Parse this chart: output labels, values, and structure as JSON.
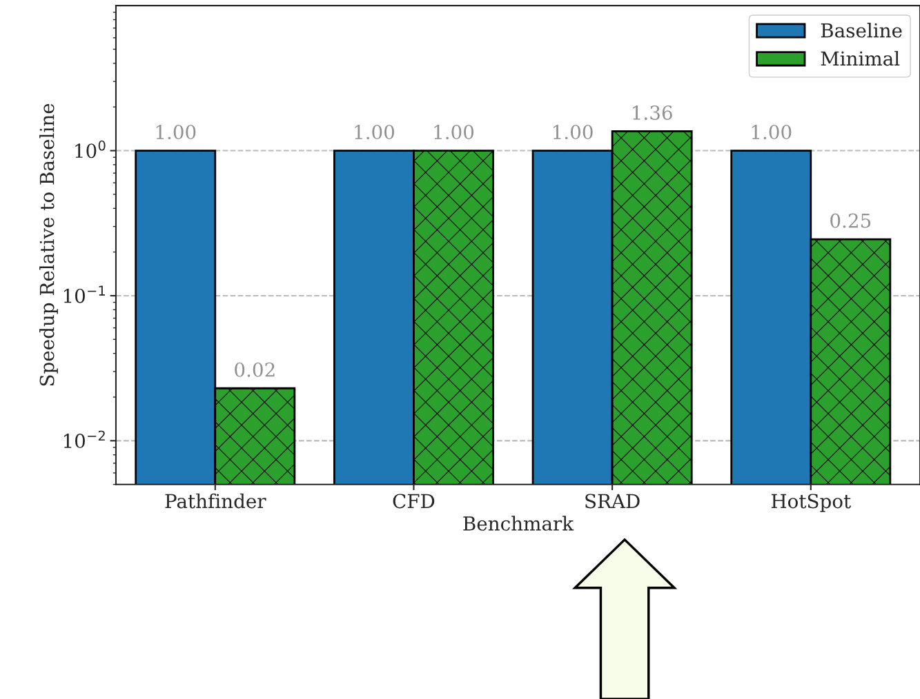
{
  "chart_data": {
    "type": "bar",
    "xlabel": "Benchmark",
    "ylabel": "Speedup Relative to Baseline",
    "categories": [
      "Pathfinder",
      "CFD",
      "SRAD",
      "HotSpot"
    ],
    "series": [
      {
        "name": "Baseline",
        "color": "#1f77b4",
        "values": [
          1.0,
          1.0,
          1.0,
          1.0
        ],
        "value_labels": [
          "1.00",
          "1.00",
          "1.00",
          "1.00"
        ]
      },
      {
        "name": "Minimal",
        "color": "#2ca02c",
        "values": [
          0.023,
          1.0,
          1.36,
          0.245
        ],
        "value_labels": [
          "0.02",
          "1.00",
          "1.36",
          "0.25"
        ]
      }
    ],
    "log": "y",
    "ylim": [
      0.005,
      10
    ],
    "yticks": [
      {
        "value": 0.01,
        "label": "10$^{−2}$"
      },
      {
        "value": 0.1,
        "label": "10$^{−1}$"
      },
      {
        "value": 1,
        "label": "10$^{0}$"
      }
    ],
    "grid": "y",
    "legend": "top right"
  }
}
